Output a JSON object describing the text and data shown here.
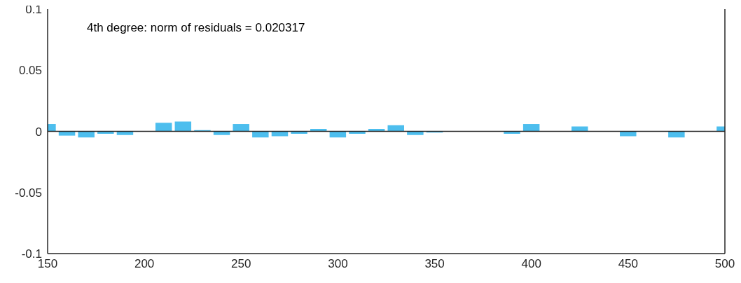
{
  "chart_data": {
    "type": "bar",
    "annotations": [
      "4th degree: norm of residuals = 0.020317"
    ],
    "x": [
      150,
      160,
      170,
      180,
      190,
      200,
      210,
      220,
      230,
      240,
      250,
      260,
      270,
      280,
      290,
      300,
      310,
      320,
      330,
      340,
      350,
      360,
      370,
      380,
      390,
      400,
      425,
      450,
      475,
      500
    ],
    "values": [
      0.006,
      -0.0035,
      -0.005,
      -0.002,
      -0.003,
      0,
      0.007,
      0.008,
      0.001,
      -0.003,
      0.006,
      -0.005,
      -0.004,
      -0.002,
      0.002,
      -0.005,
      -0.002,
      0.002,
      0.005,
      -0.003,
      -0.001,
      null,
      null,
      null,
      -0.002,
      0.006,
      0.004,
      -0.004,
      -0.005,
      0.004
    ],
    "color": "#4dbeee",
    "xlim": [
      150,
      500
    ],
    "xticks": [
      150,
      200,
      250,
      300,
      350,
      400,
      450,
      500
    ],
    "ylim": [
      -0.1,
      0.1
    ],
    "yticks": [
      -0.1,
      -0.05,
      0,
      0.05,
      0.1
    ],
    "ref_lines": [
      {
        "axis": "y",
        "value": 0,
        "color": "#262626"
      }
    ],
    "grid": false,
    "legend": false
  }
}
